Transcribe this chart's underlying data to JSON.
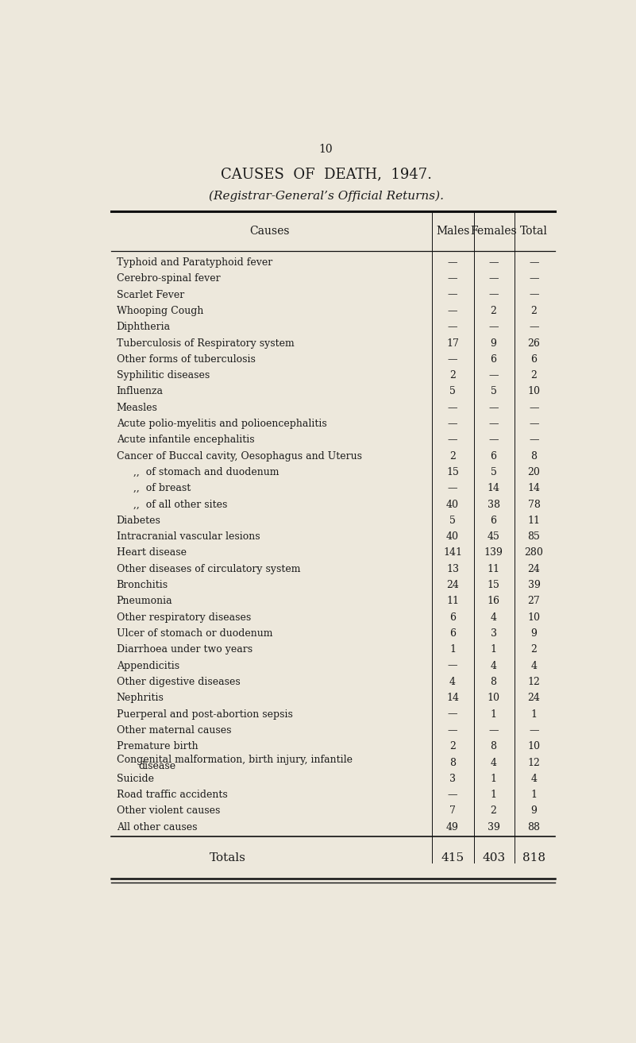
{
  "page_number": "10",
  "title": "CAUSES  OF  DEATH,  1947.",
  "subtitle": "(Registrar-General’s Official Returns).",
  "col_headers": [
    "Causes",
    "Males",
    "Females",
    "Total"
  ],
  "rows": [
    [
      "Typhoid and Paratyphoid fever",
      "—",
      "—",
      "—"
    ],
    [
      "Cerebro-spinal fever",
      "—",
      "—",
      "—"
    ],
    [
      "Scarlet Fever",
      "—",
      "—",
      "—"
    ],
    [
      "Whooping Cough",
      "—",
      "2",
      "2"
    ],
    [
      "Diphtheria",
      "—",
      "—",
      "—"
    ],
    [
      "Tuberculosis of Respiratory system",
      "17",
      "9",
      "26"
    ],
    [
      "Other forms of tuberculosis",
      "—",
      "6",
      "6"
    ],
    [
      "Syphilitic diseases",
      "2",
      "—",
      "2"
    ],
    [
      "Influenza",
      "5",
      "5",
      "10"
    ],
    [
      "Measles",
      "—",
      "—",
      "—"
    ],
    [
      "Acute polio-myelitis and polioencephalitis",
      "—",
      "—",
      "—"
    ],
    [
      "Acute infantile encephalitis",
      "—",
      "—",
      "—"
    ],
    [
      "Cancer of Buccal cavity, Oesophagus and Uterus",
      "2",
      "6",
      "8"
    ],
    [
      ",,  of stomach and duodenum",
      "15",
      "5",
      "20"
    ],
    [
      ",,  of breast",
      "—",
      "14",
      "14"
    ],
    [
      ",,  of all other sites",
      "40",
      "38",
      "78"
    ],
    [
      "Diabetes",
      "5",
      "6",
      "11"
    ],
    [
      "Intracranial vascular lesions",
      "40",
      "45",
      "85"
    ],
    [
      "Heart disease",
      "141",
      "139",
      "280"
    ],
    [
      "Other diseases of circulatory system",
      "13",
      "11",
      "24"
    ],
    [
      "Bronchitis",
      "24",
      "15",
      "39"
    ],
    [
      "Pneumonia",
      "11",
      "16",
      "27"
    ],
    [
      "Other respiratory diseases",
      "6",
      "4",
      "10"
    ],
    [
      "Ulcer of stomach or duodenum",
      "6",
      "3",
      "9"
    ],
    [
      "Diarrhoea under two years",
      "1",
      "1",
      "2"
    ],
    [
      "Appendicitis",
      "—",
      "4",
      "4"
    ],
    [
      "Other digestive diseases",
      "4",
      "8",
      "12"
    ],
    [
      "Nephritis",
      "14",
      "10",
      "24"
    ],
    [
      "Puerperal and post-abortion sepsis",
      "—",
      "1",
      "1"
    ],
    [
      "Other maternal causes",
      "—",
      "—",
      "—"
    ],
    [
      "Premature birth",
      "2",
      "8",
      "10"
    ],
    [
      "Congenital malformation, birth injury, infantile|    disease",
      "8",
      "4",
      "12"
    ],
    [
      "Suicide",
      "3",
      "1",
      "4"
    ],
    [
      "Road traffic accidents",
      "—",
      "1",
      "1"
    ],
    [
      "Other violent causes",
      "7",
      "2",
      "9"
    ],
    [
      "All other causes",
      "49",
      "39",
      "88"
    ]
  ],
  "totals_row": [
    "Totals",
    "415",
    "403",
    "818"
  ],
  "bg_color": "#ede8dc",
  "text_color": "#1a1a1a",
  "line_color": "#111111",
  "font_size_title": 13,
  "font_size_subtitle": 11,
  "font_size_header": 10,
  "font_size_body": 9,
  "font_size_page": 10
}
